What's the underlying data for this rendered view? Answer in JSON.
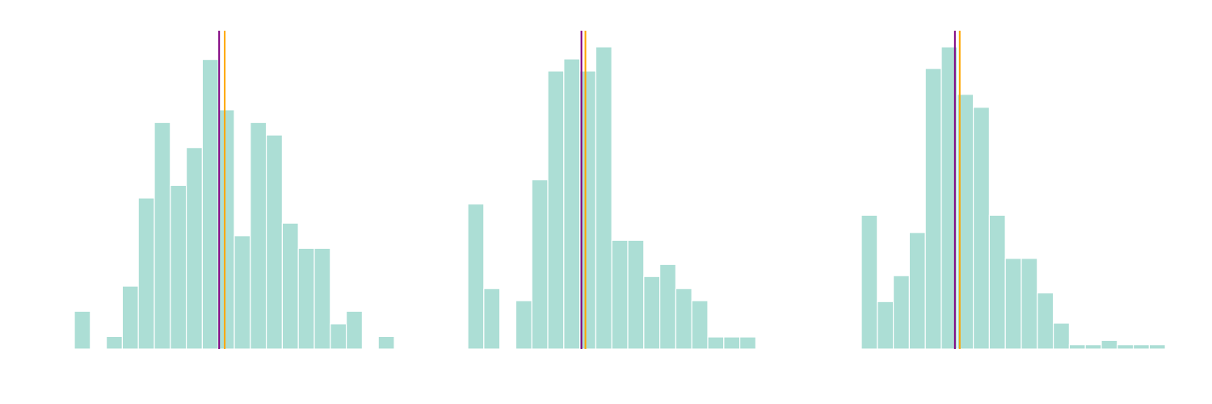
{
  "chart_data": [
    {
      "type": "bar",
      "title": "",
      "xlabel": "",
      "ylabel": "",
      "grid": false,
      "bin_count": 20,
      "ylim": [
        0,
        24
      ],
      "values": [
        3,
        0,
        1,
        5,
        12,
        18,
        13,
        16,
        23,
        19,
        9,
        18,
        17,
        10,
        8,
        8,
        2,
        3,
        0,
        1
      ],
      "reference_lines": [
        {
          "name": "purple-line",
          "bin_position": 9.05,
          "color": "#800080"
        },
        {
          "name": "orange-line",
          "bin_position": 9.4,
          "color": "#FFA500"
        }
      ]
    },
    {
      "type": "bar",
      "title": "",
      "xlabel": "",
      "ylabel": "",
      "grid": false,
      "bin_count": 18,
      "ylim": [
        0,
        25
      ],
      "values": [
        12,
        5,
        0,
        4,
        14,
        23,
        24,
        23,
        25,
        9,
        9,
        6,
        7,
        5,
        4,
        1,
        1,
        1
      ],
      "reference_lines": [
        {
          "name": "purple-line",
          "bin_position": 7.1,
          "color": "#800080"
        },
        {
          "name": "orange-line",
          "bin_position": 7.35,
          "color": "#FFA500"
        }
      ]
    },
    {
      "type": "bar",
      "title": "",
      "xlabel": "",
      "ylabel": "",
      "grid": false,
      "bin_count": 19,
      "ylim": [
        0,
        70
      ],
      "values": [
        31,
        11,
        17,
        27,
        65,
        70,
        59,
        56,
        31,
        21,
        21,
        13,
        6,
        1,
        1,
        2,
        1,
        1,
        1
      ],
      "reference_lines": [
        {
          "name": "purple-line",
          "bin_position": 5.85,
          "color": "#800080"
        },
        {
          "name": "orange-line",
          "bin_position": 6.15,
          "color": "#FFA500"
        }
      ]
    }
  ],
  "colors": {
    "bar_fill": "#ACDED5",
    "bar_edge": "#ffffff"
  }
}
